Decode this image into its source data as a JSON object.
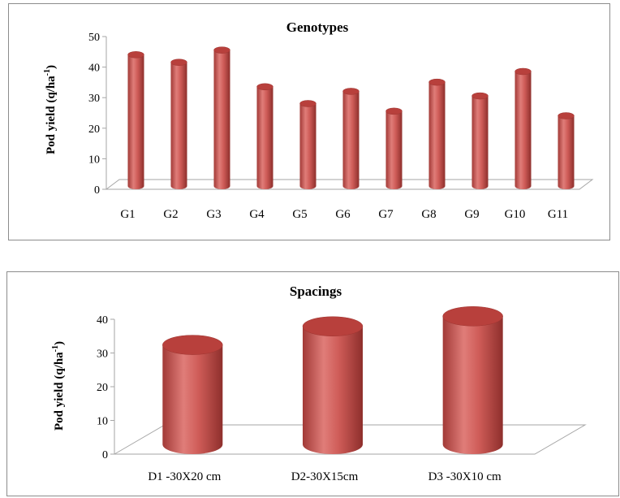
{
  "chart_data": [
    {
      "type": "bar",
      "title": "Genotypes",
      "ylabel": "Pod yield (q/ha⁻¹)",
      "ylabel_main": "Pod yield (q/ha",
      "ylabel_sup": "-1",
      "ylabel_close": ")",
      "xlabel": "",
      "categories": [
        "G1",
        "G2",
        "G3",
        "G4",
        "G5",
        "G6",
        "G7",
        "G8",
        "G9",
        "G10",
        "G11"
      ],
      "values": [
        43,
        40.5,
        44.5,
        32.5,
        27,
        31,
        24.5,
        34,
        29.5,
        37.5,
        23
      ],
      "ylim": [
        0,
        50
      ],
      "yticks": [
        0,
        10,
        20,
        30,
        40,
        50
      ],
      "bar_color": "#c0504d",
      "grid": false,
      "style": "3d-cylinder"
    },
    {
      "type": "bar",
      "title": "Spacings",
      "ylabel": "Pod yield (q/ha⁻¹)",
      "ylabel_main": "Pod yield (q/ha",
      "ylabel_sup": "-1",
      "ylabel_close": ")",
      "xlabel": "",
      "categories": [
        "D1 -30X20 cm",
        "D2-30X15cm",
        "D3 -30X10 cm"
      ],
      "values": [
        29.5,
        35,
        38
      ],
      "ylim": [
        0,
        40
      ],
      "yticks": [
        0,
        10,
        20,
        30,
        40
      ],
      "bar_color": "#c0504d",
      "grid": false,
      "style": "3d-cylinder"
    }
  ]
}
